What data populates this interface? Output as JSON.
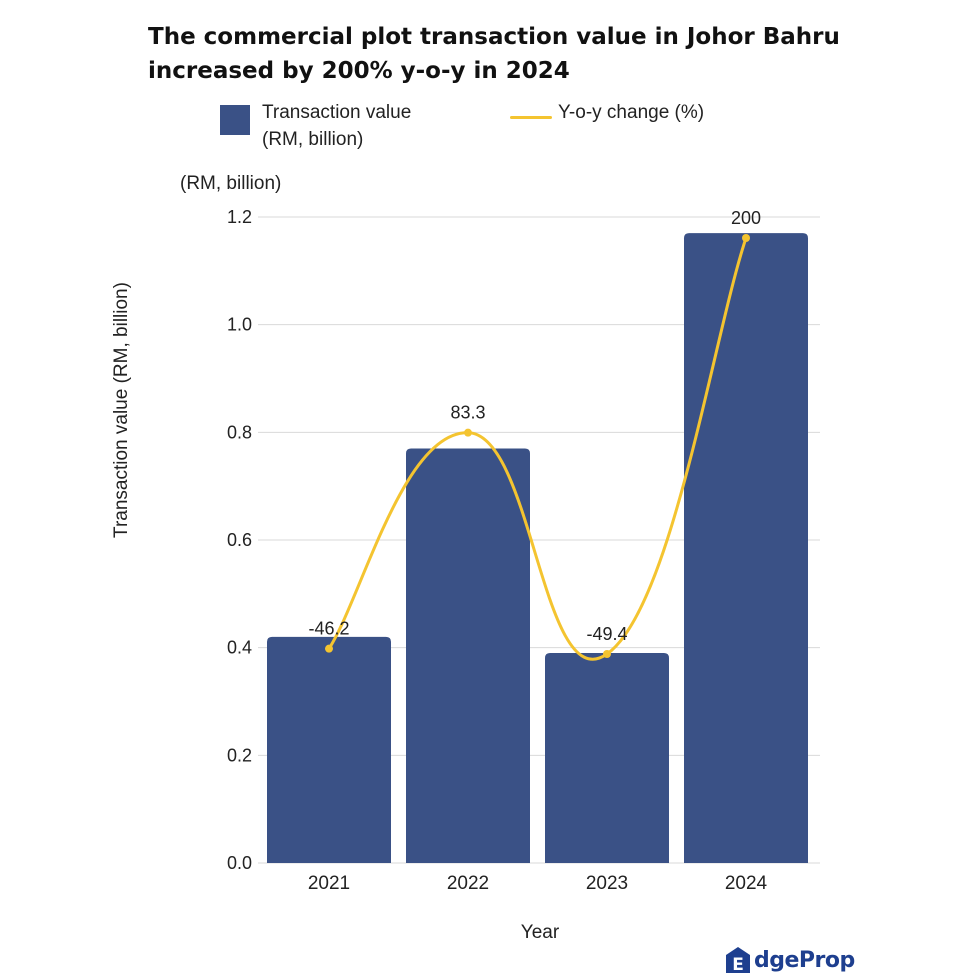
{
  "chart_data": {
    "type": "bar",
    "title_lines": [
      "The  commercial plot transaction value in Johor Bahru",
      "increased by 200% y-o-y in 2024"
    ],
    "categories": [
      "2021",
      "2022",
      "2023",
      "2024"
    ],
    "series": [
      {
        "name": "Transaction value (RM, billion)",
        "kind": "bar",
        "color": "#3a5186",
        "values": [
          0.42,
          0.77,
          0.39,
          1.17
        ]
      },
      {
        "name": "Y-o-y change (%)",
        "kind": "line",
        "color": "#f4c430",
        "values": [
          -46.2,
          83.3,
          -49.4,
          200
        ],
        "labels": [
          "-46.2",
          "83.3",
          "-49.4",
          "200"
        ]
      }
    ],
    "legend": {
      "bar_label_line1": "Transaction value",
      "bar_label_line2": "(RM, billion)",
      "line_label": "Y-o-y change (%)"
    },
    "unit_label": "(RM, billion)",
    "ylabel": "Transaction value (RM, billion)",
    "xlabel": "Year",
    "ylim": [
      0,
      1.2
    ],
    "yticks": [
      "0.0",
      "0.2",
      "0.4",
      "0.6",
      "0.8",
      "1.0",
      "1.2"
    ],
    "ytick_values": [
      0,
      0.2,
      0.4,
      0.6,
      0.8,
      1.0,
      1.2
    ],
    "grid": true
  },
  "brand": {
    "logo_text": "dgeProp",
    "logo_letter": "E"
  }
}
